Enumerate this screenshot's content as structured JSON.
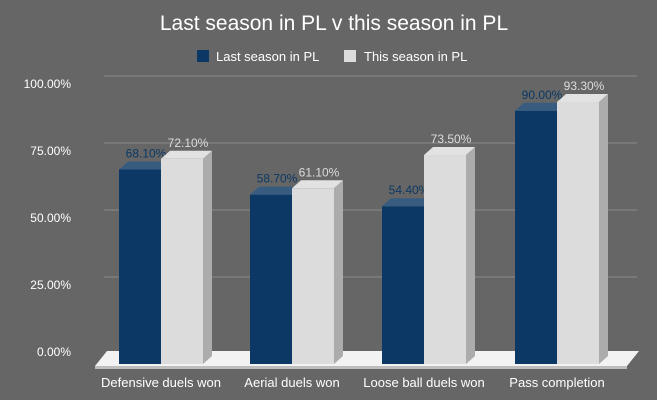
{
  "chart_data": {
    "type": "bar",
    "title": "Last season in PL v this season in PL",
    "categories": [
      "Defensive duels won",
      "Aerial duels won",
      "Loose ball duels won",
      "Pass completion"
    ],
    "series": [
      {
        "name": "Last season in PL",
        "values": [
          68.1,
          58.7,
          54.4,
          90.0
        ],
        "labels": [
          "68.10%",
          "58.70%",
          "54.40%",
          "90.00%"
        ],
        "color": "#0b3864"
      },
      {
        "name": "This season in PL",
        "values": [
          72.1,
          61.1,
          73.5,
          93.3
        ],
        "labels": [
          "72.10%",
          "61.10%",
          "73.50%",
          "93.30%"
        ],
        "color": "#dcdcdc"
      }
    ],
    "yticks": [
      0,
      25,
      50,
      75,
      100
    ],
    "ytick_labels": [
      "0.00%",
      "25.00%",
      "50.00%",
      "75.00%",
      "100.00%"
    ],
    "ylim": [
      0,
      100
    ],
    "grid": true,
    "legend": "top-center",
    "style": "3d-bar"
  },
  "colors": {
    "background": "#666666",
    "label_last": "#0b3864",
    "label_this": "#dcdcdc",
    "text": "#ffffff",
    "grid": "#8a8a8a"
  }
}
